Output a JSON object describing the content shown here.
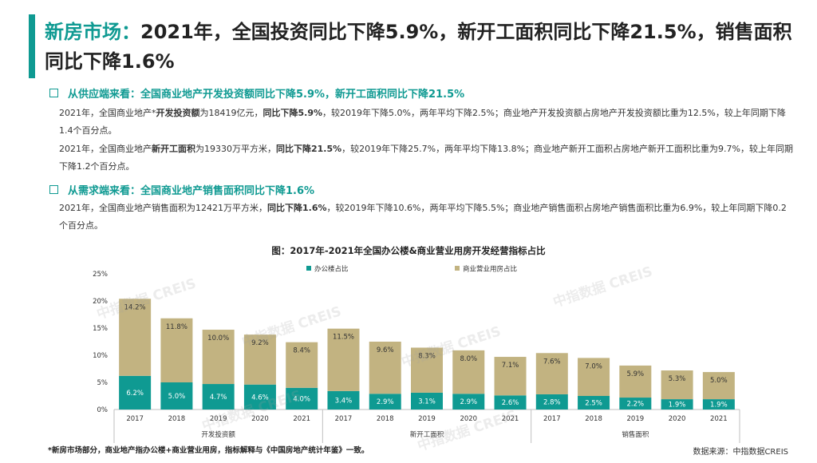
{
  "title": {
    "highlight": "新房市场：",
    "rest": "2021年，全国投资同比下降5.9%，新开工面积同比下降21.5%，销售面积同比下降1.6%"
  },
  "sections": [
    {
      "heading": "从供应端来看：全国商业地产开发投资额同比下降5.9%，新开工面积同比下降21.5%",
      "paragraphs": [
        [
          "2021年，全国商业地产*",
          "开发投资额",
          "为18419亿元，",
          "同比下降5.9%",
          "，较2019年下降5.0%，两年平均下降2.5%；商业地产开发投资额占房地产开发投资额比重为12.5%，较上年同期下降1.4个百分点。"
        ],
        [
          "2021年，全国商业地产",
          "新开工面积",
          "为19330万平方米，",
          "同比下降21.5%",
          "，较2019年下降25.7%，两年平均下降13.8%；商业地产新开工面积占房地产新开工面积比重为9.7%，较上年同期下降1.2个百分点。"
        ]
      ]
    },
    {
      "heading": "从需求端来看：全国商业地产销售面积同比下降1.6%",
      "paragraphs": [
        [
          "2021年，全国商业地产销售面积为12421万平方米，",
          "同比下降1.6%",
          "，较2019年下降10.6%，两年平均下降5.5%；商业地产销售面积占房地产销售面积比重为6.9%，较上年同期下降0.2个百分点。"
        ]
      ]
    }
  ],
  "chart_data": {
    "type": "bar",
    "stacked": true,
    "title": "图：2017年-2021年全国办公楼&商业营业用房开发经营指标占比",
    "ylim": [
      0,
      25
    ],
    "yticks": [
      "0%",
      "5%",
      "10%",
      "15%",
      "20%",
      "25%"
    ],
    "groups": [
      {
        "name": "开发投资额",
        "categories": [
          "2017",
          "2018",
          "2019",
          "2020",
          "2021"
        ]
      },
      {
        "name": "新开工面积",
        "categories": [
          "2017",
          "2018",
          "2019",
          "2020",
          "2021"
        ]
      },
      {
        "name": "销售面积",
        "categories": [
          "2017",
          "2018",
          "2019",
          "2020",
          "2021"
        ]
      }
    ],
    "series": [
      {
        "name": "办公楼占比",
        "color": "#0f9a92",
        "values": [
          6.2,
          5.0,
          4.7,
          4.6,
          4.0,
          3.4,
          2.9,
          3.1,
          2.9,
          2.6,
          2.8,
          2.5,
          2.2,
          1.9,
          1.9
        ],
        "labels": [
          "6.2%",
          "5.0%",
          "4.7%",
          "4.6%",
          "4.0%",
          "3.4%",
          "2.9%",
          "3.1%",
          "2.9%",
          "2.6%",
          "2.8%",
          "2.5%",
          "2.2%",
          "1.9%",
          "1.9%"
        ]
      },
      {
        "name": "商业营业用房占比",
        "color": "#c2b381",
        "values": [
          14.2,
          11.8,
          10.0,
          9.2,
          8.4,
          11.5,
          9.6,
          8.3,
          8.0,
          7.1,
          7.6,
          7.0,
          5.9,
          5.3,
          5.0
        ],
        "labels": [
          "14.2%",
          "11.8%",
          "10.0%",
          "9.2%",
          "8.4%",
          "11.5%",
          "9.6%",
          "8.3%",
          "8.0%",
          "7.1%",
          "7.6%",
          "7.0%",
          "5.9%",
          "5.3%",
          "5.0%"
        ]
      }
    ]
  },
  "watermark_text": "中指数据 CREIS",
  "footnote": "*新房市场部分，商业地产指办公楼+商业营业用房，指标解释与《中国房地产统计年鉴》一致。",
  "source": "数据来源：中指数据CREIS"
}
